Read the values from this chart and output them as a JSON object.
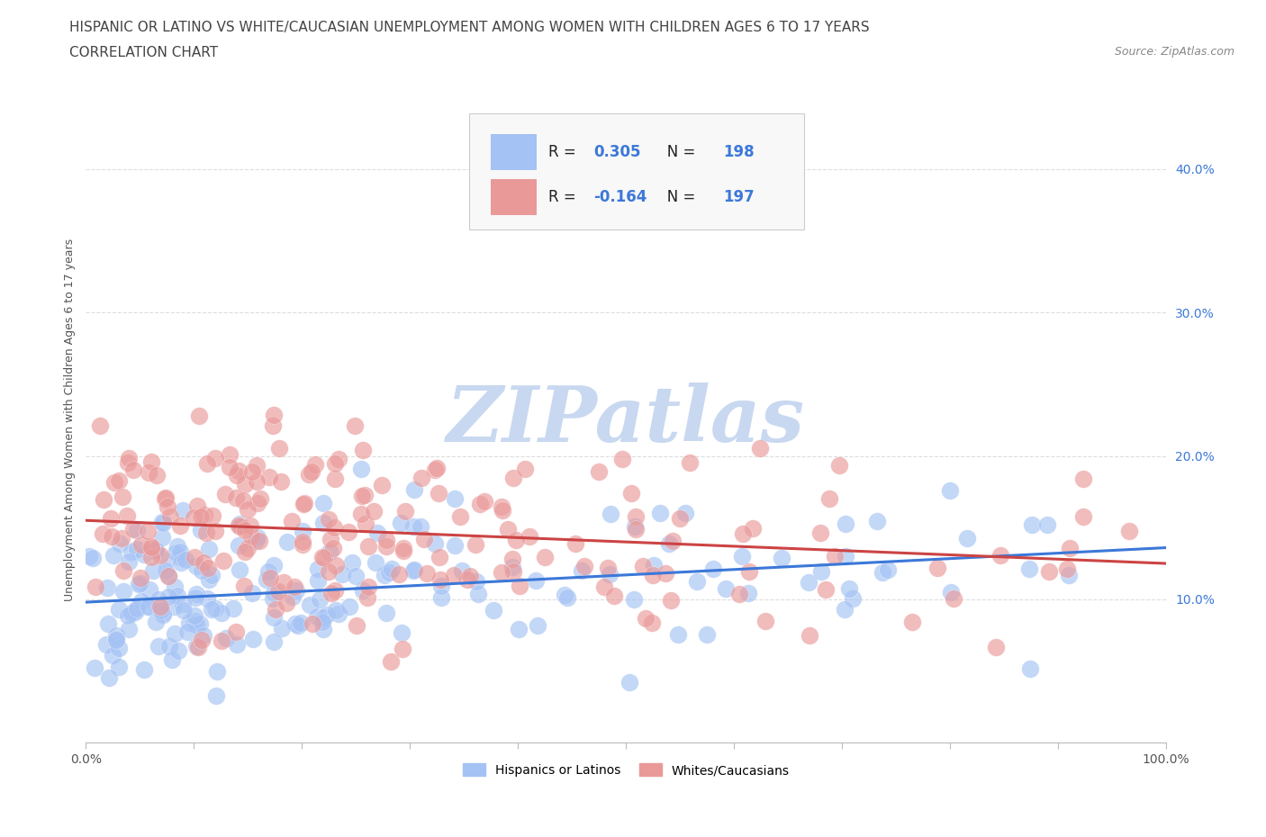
{
  "title_line1": "HISPANIC OR LATINO VS WHITE/CAUCASIAN UNEMPLOYMENT AMONG WOMEN WITH CHILDREN AGES 6 TO 17 YEARS",
  "title_line2": "CORRELATION CHART",
  "source_text": "Source: ZipAtlas.com",
  "ylabel": "Unemployment Among Women with Children Ages 6 to 17 years",
  "xlim": [
    0,
    1.0
  ],
  "ylim": [
    0,
    0.45
  ],
  "xticks": [
    0.0,
    0.1,
    0.2,
    0.3,
    0.4,
    0.5,
    0.6,
    0.7,
    0.8,
    0.9,
    1.0
  ],
  "xtick_labels_full": [
    "0.0%",
    "",
    "",
    "",
    "",
    "",
    "",
    "",
    "",
    "",
    "100.0%"
  ],
  "yticks": [
    0.0,
    0.1,
    0.2,
    0.3,
    0.4
  ],
  "ytick_labels": [
    "",
    "10.0%",
    "20.0%",
    "30.0%",
    "40.0%"
  ],
  "blue_color": "#a4c2f4",
  "pink_color": "#ea9999",
  "blue_line_color": "#3c78d8",
  "pink_line_color": "#cc4444",
  "watermark_color": "#c8d8f0",
  "R_blue": 0.305,
  "N_blue": 198,
  "R_pink": -0.164,
  "N_pink": 197,
  "blue_intercept": 0.098,
  "blue_slope": 0.038,
  "pink_intercept": 0.155,
  "pink_slope": -0.03,
  "grid_color": "#dddddd",
  "bg_color": "#ffffff",
  "legend_label_blue": "Hispanics or Latinos",
  "legend_label_pink": "Whites/Caucasians",
  "title_fontsize": 11,
  "source_fontsize": 9,
  "axis_label_fontsize": 9,
  "tick_fontsize": 10,
  "ytick_color": "#3c78d8"
}
